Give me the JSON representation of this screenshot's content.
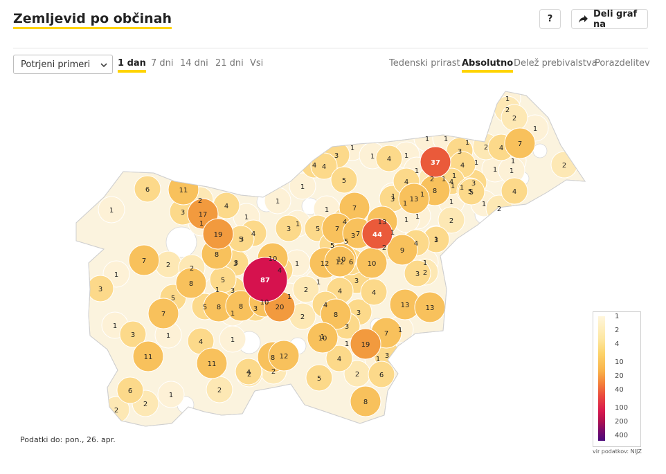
{
  "header": {
    "title": "Zemljevid po občinah",
    "help_label": "?",
    "share_label": "Deli graf na"
  },
  "controls": {
    "select_value": "Potrjeni primeri",
    "time_tabs": [
      {
        "label": "1 dan",
        "active": true
      },
      {
        "label": "7 dni",
        "active": false
      },
      {
        "label": "14 dni",
        "active": false
      },
      {
        "label": "21 dni",
        "active": false
      },
      {
        "label": "Vsi",
        "active": false
      }
    ],
    "mode_tabs": [
      {
        "label": "Tedenski prirast",
        "active": false
      },
      {
        "label": "Absolutno",
        "active": true
      },
      {
        "label": "Delež prebivalstva",
        "active": false
      },
      {
        "label": "Porazdelitev",
        "active": false
      }
    ]
  },
  "legend": {
    "labels": [
      "1",
      "2",
      "4",
      "10",
      "20",
      "40",
      "100",
      "200",
      "400"
    ]
  },
  "source": "vir podatkov: NIJZ",
  "footnote": "Podatki do: pon., 26. apr.",
  "colors": {
    "accent": "#ffd400",
    "c1": "#fdf1d6",
    "c2": "#fde8b4",
    "c4": "#fcd98a",
    "c10": "#f8c15c",
    "c20": "#f29a3e",
    "c40": "#ea5a3a",
    "c100": "#d6124e",
    "empty": "#ffffff",
    "border": "#d9d9d9"
  },
  "map_values": [
    "1",
    "2",
    "2",
    "1",
    "7",
    "1",
    "1",
    "1",
    "2",
    "3",
    "4",
    "2",
    "4",
    "1",
    "1",
    "1",
    "1",
    "2",
    "1",
    "1",
    "1",
    "1",
    "37",
    "3",
    "4",
    "4",
    "1",
    "1",
    "5",
    "2",
    "3",
    "1",
    "1",
    "4",
    "4",
    "1",
    "1",
    "4",
    "3",
    "5",
    "4",
    "2",
    "8",
    "5",
    "1",
    "6",
    "11",
    "1",
    "3",
    "1",
    "7",
    "13",
    "1",
    "1",
    "1",
    "3",
    "1",
    "2",
    "17",
    "4",
    "1",
    "1",
    "4",
    "3",
    "1",
    "1",
    "19",
    "3",
    "1",
    "7",
    "13",
    "44",
    "4",
    "1",
    "3",
    "5",
    "4",
    "2",
    "1",
    "1",
    "5",
    "5",
    "7",
    "5",
    "8",
    "2",
    "2",
    "1",
    "3",
    "10",
    "12",
    "12",
    "6",
    "9",
    "10",
    "7",
    "1",
    "4",
    "3",
    "10",
    "3",
    "87",
    "3",
    "1",
    "2",
    "1",
    "2",
    "3",
    "4",
    "4",
    "5",
    "5",
    "8",
    "8",
    "5",
    "20",
    "1",
    "8",
    "3",
    "3",
    "3",
    "13",
    "13",
    "4",
    "10",
    "7",
    "7",
    "8",
    "2",
    "1",
    "1",
    "3",
    "1",
    "10",
    "3",
    "1",
    "19",
    "1",
    "2",
    "2",
    "4",
    "1",
    "11",
    "4",
    "1",
    "2",
    "5",
    "8",
    "11",
    "4",
    "6",
    "6",
    "1",
    "2",
    "2",
    "2",
    "12",
    "8",
    "1",
    "3"
  ]
}
